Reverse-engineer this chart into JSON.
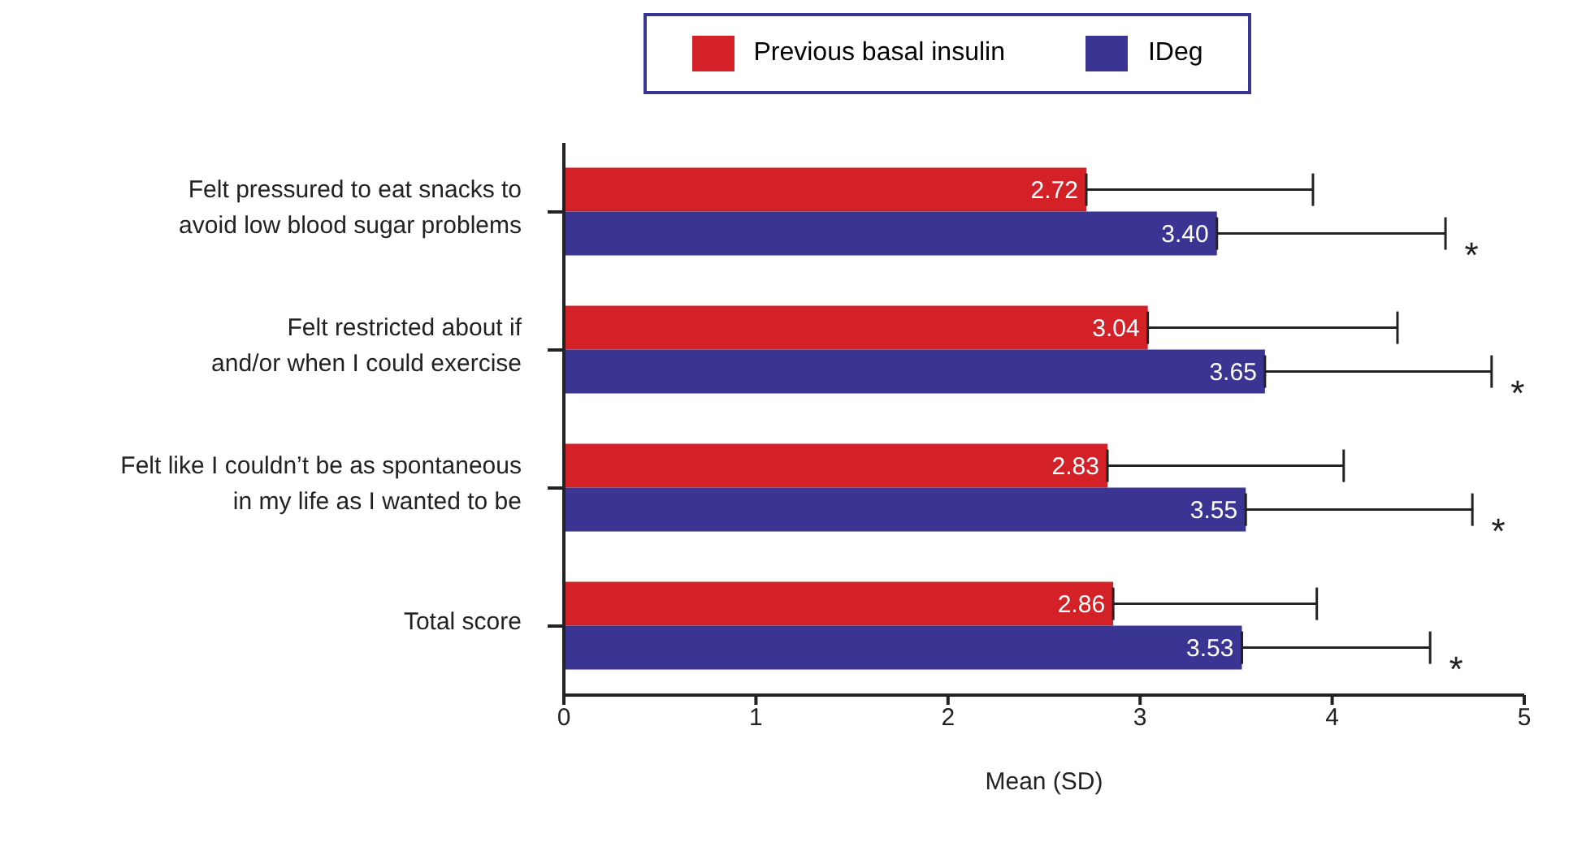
{
  "chart_data": {
    "type": "bar",
    "orientation": "horizontal",
    "xlabel": "Mean (SD)",
    "categories": [
      "Felt pressured to eat snacks to avoid low blood sugar problems",
      "Felt restricted about if and/or when I could exercise",
      "Felt like I couldn’t be as spontaneous in my life as I wanted to be",
      "Total score"
    ],
    "series": [
      {
        "name": "Previous basal insulin",
        "color": "#d42027",
        "values": [
          2.72,
          3.04,
          2.83,
          2.86
        ],
        "value_labels": [
          "2.72",
          "3.04",
          "2.83",
          "2.86"
        ],
        "errors": [
          [
            2.72,
            3.9
          ],
          [
            3.04,
            4.34
          ],
          [
            2.83,
            4.06
          ],
          [
            2.86,
            3.92
          ]
        ]
      },
      {
        "name": "IDeg",
        "color": "#3a3592",
        "values": [
          3.4,
          3.65,
          3.55,
          3.53
        ],
        "value_labels": [
          "3.40",
          "3.65",
          "3.55",
          "3.53"
        ],
        "errors": [
          [
            3.4,
            4.59
          ],
          [
            3.65,
            4.83
          ],
          [
            3.55,
            4.73
          ],
          [
            3.53,
            4.51
          ]
        ]
      }
    ],
    "xlim": [
      0,
      5
    ],
    "xticks": [
      0,
      1,
      2,
      3,
      4,
      5
    ],
    "legend": "top",
    "annotations": [
      "*",
      "*",
      "*",
      "*"
    ]
  }
}
